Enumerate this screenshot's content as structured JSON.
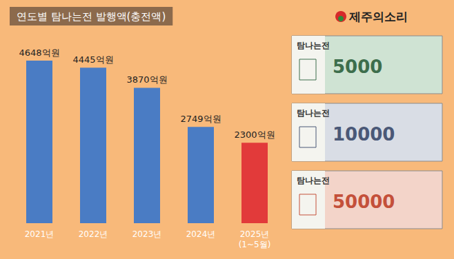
{
  "chart_data": {
    "type": "bar",
    "title": "연도별 탐나는전 발행액(충전액)",
    "categories": [
      "2021년",
      "2022년",
      "2023년",
      "2024년",
      "2025년\n(1~5월)"
    ],
    "values": [
      4648,
      4445,
      3870,
      2749,
      2300
    ],
    "value_labels": [
      "4648억원",
      "4445억원",
      "3870억원",
      "2749억원",
      "2300억원"
    ],
    "colors": [
      "#4a7cc4",
      "#4a7cc4",
      "#4a7cc4",
      "#4a7cc4",
      "#e23a3a"
    ],
    "ylim": [
      0,
      5000
    ],
    "yticks": [
      0,
      5000
    ],
    "grid": false,
    "tick_labels": "x",
    "data_labels": true,
    "logo": "제주의소리",
    "notes": [
      {
        "title": "탐나는전",
        "denomination": 5000,
        "color": "#cfe3d3"
      },
      {
        "title": "탐나는전",
        "denomination": 10000,
        "color": "#d9dde5"
      },
      {
        "title": "탐나는전",
        "denomination": 50000,
        "color": "#f3d4c9"
      }
    ]
  }
}
